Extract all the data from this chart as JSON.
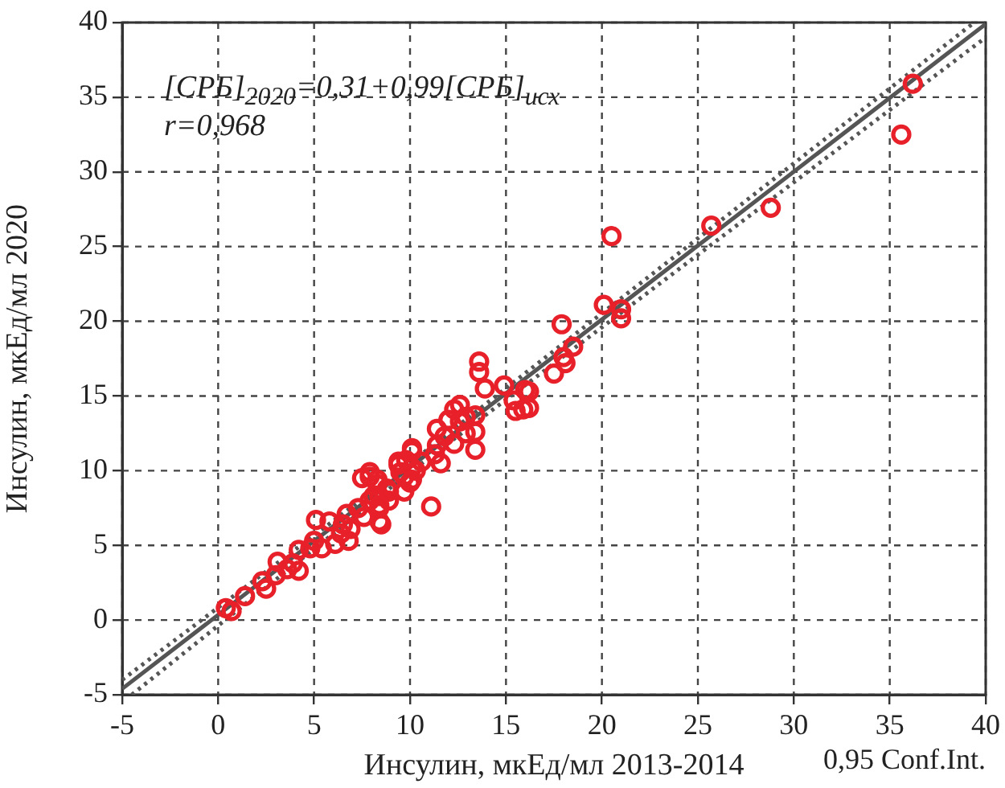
{
  "chart_data": {
    "type": "scatter",
    "xlabel": "Инсулин, мкЕд/мл 2013-2014",
    "ylabel": "Инсулин, мкЕд/мл 2020",
    "annotations": [
      "[СРБ]$_{2020}$=0,31+0,99[СРБ]$_{исх}$",
      "r=0,968",
      "0,95 Conf.Int."
    ],
    "xlim": [
      -5,
      40
    ],
    "ylim": [
      -5,
      40
    ],
    "xticks": [
      -5,
      0,
      5,
      10,
      15,
      20,
      25,
      30,
      35,
      40
    ],
    "yticks": [
      -5,
      0,
      5,
      10,
      15,
      20,
      25,
      30,
      35,
      40
    ],
    "grid": true,
    "legend": false,
    "marker": "circle",
    "series": [
      {
        "color": "#e8202a",
        "x": [
          0.4,
          0.7,
          1.4,
          2.3,
          2.5,
          3.0,
          3.1,
          3.6,
          3.9,
          4.2,
          4.2,
          4.8,
          5.0,
          5.1,
          5.4,
          5.8,
          6.1,
          6.4,
          6.8,
          6.5,
          6.9,
          6.7,
          7.3,
          7.6,
          7.5,
          7.9,
          8.3,
          8.4,
          8.4,
          8.5,
          7.9,
          8.1,
          8.8,
          8.9,
          9.4,
          10.1,
          9.7,
          10.0,
          10.1,
          13.6,
          13.6,
          13.9,
          14.9,
          16.0,
          15.4,
          15.9,
          15.5,
          12.6,
          12.3,
          12.9,
          12.0,
          13.4,
          11.4,
          12.6,
          12.9,
          13.4,
          12.3,
          11.8,
          13.4,
          11.4,
          11.3,
          11.6,
          10.1,
          9.8,
          9.4,
          10.6,
          10.3,
          9.5,
          10.1,
          8.3,
          9.7,
          8.9,
          11.1,
          8.4,
          8.4,
          7.9,
          20.5,
          25.7,
          28.8,
          36.2,
          35.6,
          20.1,
          21.0,
          21.0,
          17.9,
          18.5,
          18.0,
          18.1,
          17.5,
          16.2,
          16.2
        ],
        "values": [
          0.8,
          0.6,
          1.6,
          2.6,
          2.1,
          3.0,
          3.9,
          3.4,
          3.8,
          3.3,
          4.7,
          4.8,
          5.3,
          6.7,
          4.8,
          6.6,
          5.1,
          5.8,
          5.3,
          6.4,
          6.1,
          7.1,
          7.5,
          6.9,
          9.5,
          9.6,
          9.1,
          8.3,
          7.5,
          6.4,
          8.0,
          8.3,
          8.8,
          8.0,
          10.4,
          11.3,
          9.6,
          9.2,
          10.2,
          17.3,
          16.6,
          15.5,
          15.7,
          15.4,
          14.7,
          14.1,
          14.0,
          14.4,
          14.1,
          13.6,
          13.4,
          13.7,
          12.8,
          13.3,
          12.5,
          12.6,
          11.8,
          12.3,
          11.4,
          11.7,
          11.1,
          10.5,
          11.5,
          10.7,
          10.6,
          10.6,
          10.0,
          9.9,
          9.4,
          9.4,
          8.6,
          8.6,
          7.6,
          7.7,
          6.6,
          9.9,
          25.7,
          26.4,
          27.6,
          35.9,
          32.5,
          21.1,
          20.8,
          20.2,
          19.8,
          18.3,
          17.6,
          17.2,
          16.5,
          15.3,
          14.2
        ]
      },
      {
        "type": "line",
        "color": "#555555",
        "line_style": "solid",
        "marker": "none",
        "x": [
          -5,
          40
        ],
        "values": [
          -4.6,
          39.9
        ]
      },
      {
        "type": "line",
        "color": "#555555",
        "line_style": "dotted",
        "marker": "none",
        "x": [
          -4.5,
          10,
          40
        ],
        "values": [
          -5.0,
          9.9,
          39.0
        ]
      },
      {
        "type": "line",
        "color": "#555555",
        "line_style": "dotted",
        "marker": "none",
        "x": [
          -5,
          10,
          39.4
        ],
        "values": [
          -4.0,
          10.5,
          40.0
        ]
      }
    ]
  }
}
